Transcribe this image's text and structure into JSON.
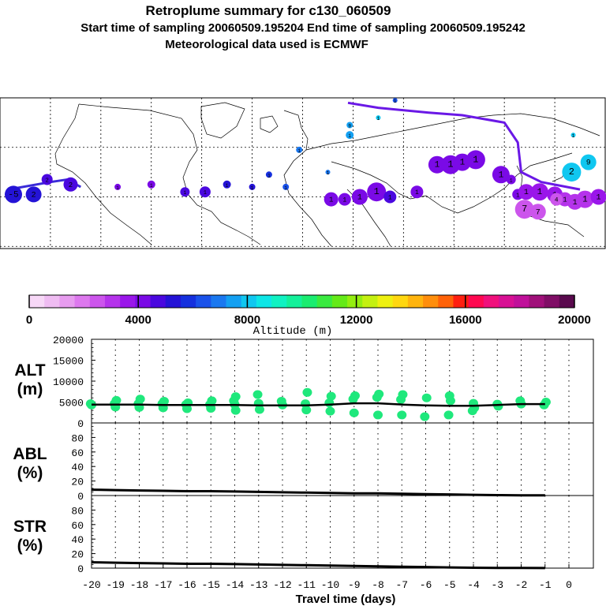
{
  "header": {
    "title": "Retroplume summary for c130_060509",
    "sampling": "Start time of sampling 20060509.195204     End time of sampling 20060509.195242",
    "met": "Meteorological data used is ECMWF"
  },
  "colorbar": {
    "label": "Altitude (m)",
    "ticks": [
      "0",
      "4000",
      "8000",
      "12000",
      "16000",
      "20000"
    ],
    "colors": [
      "#f7d8f7",
      "#efbcf2",
      "#e79cef",
      "#dd78ee",
      "#cc55ec",
      "#b533eb",
      "#9a16ea",
      "#7a0ae6",
      "#4a08df",
      "#2413d6",
      "#1530de",
      "#1a52ea",
      "#1a78f0",
      "#14a0f2",
      "#10c7f0",
      "#0ee6e6",
      "#10f2c2",
      "#14f09a",
      "#1aec70",
      "#3aea40",
      "#64ea18",
      "#94ee10",
      "#c4f010",
      "#eef010",
      "#ffd710",
      "#ffb40e",
      "#ff8e0c",
      "#ff6208",
      "#ff1f10",
      "#ff0850",
      "#f0107c",
      "#d81094",
      "#c0109a",
      "#a0107a",
      "#800e66",
      "#5a0a4e"
    ]
  },
  "panels": {
    "alt": {
      "label_top": "ALT",
      "label_bottom": "(m)",
      "ticks": [
        "0",
        "5000",
        "10000",
        "15000",
        "20000"
      ]
    },
    "abl": {
      "label_top": "ABL",
      "label_bottom": "(%)",
      "ticks": [
        "0",
        "20",
        "40",
        "60",
        "80"
      ]
    },
    "str": {
      "label_top": "STR",
      "label_bottom": "(%)",
      "ticks": [
        "0",
        "20",
        "40",
        "60",
        "80"
      ]
    }
  },
  "xaxis": {
    "label": "Travel time (days)",
    "ticks": [
      "-20",
      "-19",
      "-18",
      "-17",
      "-16",
      "-15",
      "-14",
      "-13",
      "-12",
      "-11",
      "-10",
      "-9",
      "-8",
      "-7",
      "-6",
      "-5",
      "-4",
      "-3",
      "-2",
      "-1",
      "0"
    ]
  },
  "chart_data": [
    {
      "type": "scatter",
      "title": "ALT (m)",
      "xlabel": "Travel time (days)",
      "ylabel": "ALT (m)",
      "xlim": [
        -20,
        0
      ],
      "ylim": [
        0,
        20000
      ],
      "median_line": {
        "x": [
          -20,
          -19,
          -18,
          -17,
          -16,
          -15,
          -14,
          -13,
          -12,
          -11,
          -10,
          -9,
          -8,
          -7,
          -6,
          -5,
          -4,
          -3,
          -2,
          -1
        ],
        "y": [
          4400,
          4400,
          4400,
          4300,
          4300,
          4300,
          4300,
          4200,
          4200,
          4200,
          4400,
          4700,
          4700,
          4400,
          4200,
          4100,
          4100,
          4300,
          4500,
          4500
        ]
      },
      "points": {
        "x": [
          -20,
          -20,
          -19,
          -19,
          -19,
          -18,
          -18,
          -18,
          -17,
          -17,
          -17,
          -16,
          -16,
          -16,
          -15,
          -15,
          -15,
          -14,
          -14,
          -14,
          -14,
          -13,
          -13,
          -13,
          -12,
          -12,
          -11,
          -11,
          -11,
          -10,
          -10,
          -10,
          -9,
          -9,
          -9,
          -8,
          -8,
          -8,
          -7,
          -7,
          -7,
          -6,
          -6,
          -5,
          -5,
          -5,
          -4,
          -4,
          -4,
          -3,
          -3,
          -2,
          -2,
          -1,
          -1
        ],
        "y": [
          4600,
          4300,
          5400,
          4600,
          3800,
          5700,
          4600,
          3700,
          5200,
          4600,
          3600,
          4800,
          4400,
          3400,
          5300,
          4400,
          3500,
          6300,
          5300,
          4400,
          3000,
          6800,
          4700,
          3200,
          5200,
          4300,
          7300,
          4600,
          3100,
          6400,
          4800,
          2800,
          6500,
          5700,
          2400,
          6900,
          6100,
          1900,
          6800,
          5600,
          1900,
          6000,
          1500,
          6500,
          5300,
          1900,
          4700,
          3600,
          2900,
          4500,
          4000,
          5300,
          4500,
          5000,
          4300
        ]
      }
    },
    {
      "type": "line",
      "title": "ABL (%)",
      "ylabel": "ABL (%)",
      "xlim": [
        -20,
        0
      ],
      "ylim": [
        0,
        100
      ],
      "x": [
        -20,
        -19,
        -18,
        -17,
        -16,
        -15,
        -14,
        -13,
        -12,
        -11,
        -10,
        -9,
        -8,
        -7,
        -6,
        -5,
        -4,
        -3,
        -2,
        -1
      ],
      "y": [
        8,
        7.5,
        7,
        6.5,
        6,
        6,
        5.5,
        5,
        4.5,
        4,
        3.5,
        3,
        3,
        2.5,
        2,
        1.5,
        1,
        0.5,
        0.3,
        0.2
      ]
    },
    {
      "type": "line",
      "title": "STR (%)",
      "ylabel": "STR (%)",
      "xlim": [
        -20,
        0
      ],
      "ylim": [
        0,
        100
      ],
      "x": [
        -20,
        -19,
        -18,
        -17,
        -16,
        -15,
        -14,
        -13,
        -12,
        -11,
        -10,
        -9,
        -8,
        -7,
        -6,
        -5,
        -4,
        -3,
        -2,
        -1
      ],
      "y": [
        8,
        7.5,
        7,
        6.5,
        6,
        6,
        5.5,
        5,
        4.5,
        4,
        3.5,
        3,
        2.5,
        2,
        1.5,
        1,
        0.5,
        0.3,
        0.2,
        0.1
      ]
    }
  ],
  "map": {
    "trajectory": [
      {
        "lon": -172,
        "lat": 41,
        "alt": 5500,
        "r": 11,
        "label": "-5"
      },
      {
        "lon": -160,
        "lat": 41,
        "alt": 5000,
        "r": 10,
        "label": "2"
      },
      {
        "lon": -152,
        "lat": 47,
        "alt": 4500,
        "r": 7,
        "label": "2"
      },
      {
        "lon": -138,
        "lat": 45,
        "alt": 4700,
        "r": 9,
        "label": "2"
      },
      {
        "lon": -110,
        "lat": 44,
        "alt": 4200,
        "r": 4,
        "label": "1"
      },
      {
        "lon": -90,
        "lat": 45,
        "alt": 4300,
        "r": 5,
        "label": "1"
      },
      {
        "lon": -70,
        "lat": 42,
        "alt": 4500,
        "r": 6,
        "label": "1"
      },
      {
        "lon": -58,
        "lat": 42,
        "alt": 4600,
        "r": 7,
        "label": "1"
      },
      {
        "lon": -45,
        "lat": 45,
        "alt": 5200,
        "r": 5,
        "label": "1"
      },
      {
        "lon": -30,
        "lat": 44,
        "alt": 5200,
        "r": 4,
        "label": "1"
      },
      {
        "lon": -20,
        "lat": 49,
        "alt": 5600,
        "r": 4,
        "label": "1"
      },
      {
        "lon": -10,
        "lat": 44,
        "alt": 6500,
        "r": 4,
        "label": "1"
      },
      {
        "lon": -2,
        "lat": 59,
        "alt": 7000,
        "r": 4,
        "label": "1"
      },
      {
        "lon": 15,
        "lat": 50,
        "alt": 7200,
        "r": 3,
        "label": "1"
      },
      {
        "lon": 28,
        "lat": 65,
        "alt": 7300,
        "r": 5,
        "label": "1"
      },
      {
        "lon": 28,
        "lat": 69,
        "alt": 7600,
        "r": 4,
        "label": "9"
      },
      {
        "lon": 45,
        "lat": 72,
        "alt": 7800,
        "r": 3,
        "label": "1"
      },
      {
        "lon": 55,
        "lat": 79,
        "alt": 6500,
        "r": 3,
        "label": "1"
      },
      {
        "lon": 17,
        "lat": 39,
        "alt": 4200,
        "r": 9,
        "label": "1"
      },
      {
        "lon": 25,
        "lat": 39,
        "alt": 4300,
        "r": 8,
        "label": "1"
      },
      {
        "lon": 34,
        "lat": 40,
        "alt": 4300,
        "r": 10,
        "label": "1"
      },
      {
        "lon": 44,
        "lat": 42,
        "alt": 4200,
        "r": 12,
        "label": "1"
      },
      {
        "lon": 52,
        "lat": 40,
        "alt": 4600,
        "r": 8,
        "label": "1"
      },
      {
        "lon": 68,
        "lat": 42,
        "alt": 4400,
        "r": 8,
        "label": "1"
      },
      {
        "lon": 80,
        "lat": 53,
        "alt": 4000,
        "r": 11,
        "label": "1"
      },
      {
        "lon": 88,
        "lat": 53,
        "alt": 4000,
        "r": 12,
        "label": "1"
      },
      {
        "lon": 95,
        "lat": 54,
        "alt": 3900,
        "r": 11,
        "label": "1"
      },
      {
        "lon": 103,
        "lat": 55,
        "alt": 4000,
        "r": 12,
        "label": "1"
      },
      {
        "lon": 118,
        "lat": 49,
        "alt": 3900,
        "r": 11,
        "label": "1"
      },
      {
        "lon": 124,
        "lat": 47,
        "alt": 4400,
        "r": 6,
        "label": "1"
      },
      {
        "lon": 128,
        "lat": 41,
        "alt": 3900,
        "r": 7,
        "label": "1"
      },
      {
        "lon": 133,
        "lat": 42,
        "alt": 3800,
        "r": 10,
        "label": "1"
      },
      {
        "lon": 141,
        "lat": 42,
        "alt": 3600,
        "r": 11,
        "label": "1"
      },
      {
        "lon": 150,
        "lat": 41,
        "alt": 3500,
        "r": 10,
        "label": "1"
      },
      {
        "lon": 156,
        "lat": 39,
        "alt": 3300,
        "r": 9,
        "label": "1"
      },
      {
        "lon": 162,
        "lat": 38,
        "alt": 3200,
        "r": 10,
        "label": "1"
      },
      {
        "lon": 168,
        "lat": 39,
        "alt": 3000,
        "r": 11,
        "label": "1"
      },
      {
        "lon": 176,
        "lat": 40,
        "alt": 3500,
        "r": 10,
        "label": "1"
      },
      {
        "lon": 132,
        "lat": 35,
        "alt": 2400,
        "r": 12,
        "label": "7"
      },
      {
        "lon": 140,
        "lat": 34,
        "alt": 2300,
        "r": 10,
        "label": "7"
      },
      {
        "lon": 151,
        "lat": 39,
        "alt": 2300,
        "r": 8,
        "label": "4"
      },
      {
        "lon": 160,
        "lat": 50,
        "alt": 8000,
        "r": 12,
        "label": "2"
      },
      {
        "lon": 170,
        "lat": 54,
        "alt": 8200,
        "r": 10,
        "label": "9"
      },
      {
        "lon": 161,
        "lat": 65,
        "alt": 7800,
        "r": 3,
        "label": "1"
      }
    ],
    "track": [
      {
        "lon": -175,
        "lat": 43
      },
      {
        "lon": -150,
        "lat": 46
      },
      {
        "lon": -140,
        "lat": 47
      },
      {
        "lon": -132,
        "lat": 44
      }
    ],
    "track2": [
      {
        "lon": 27,
        "lat": 78
      },
      {
        "lon": 45,
        "lat": 76
      },
      {
        "lon": 75,
        "lat": 74
      },
      {
        "lon": 95,
        "lat": 73
      },
      {
        "lon": 120,
        "lat": 70
      },
      {
        "lon": 128,
        "lat": 62
      },
      {
        "lon": 130,
        "lat": 50
      },
      {
        "lon": 142,
        "lat": 46
      },
      {
        "lon": 165,
        "lat": 43
      }
    ]
  }
}
